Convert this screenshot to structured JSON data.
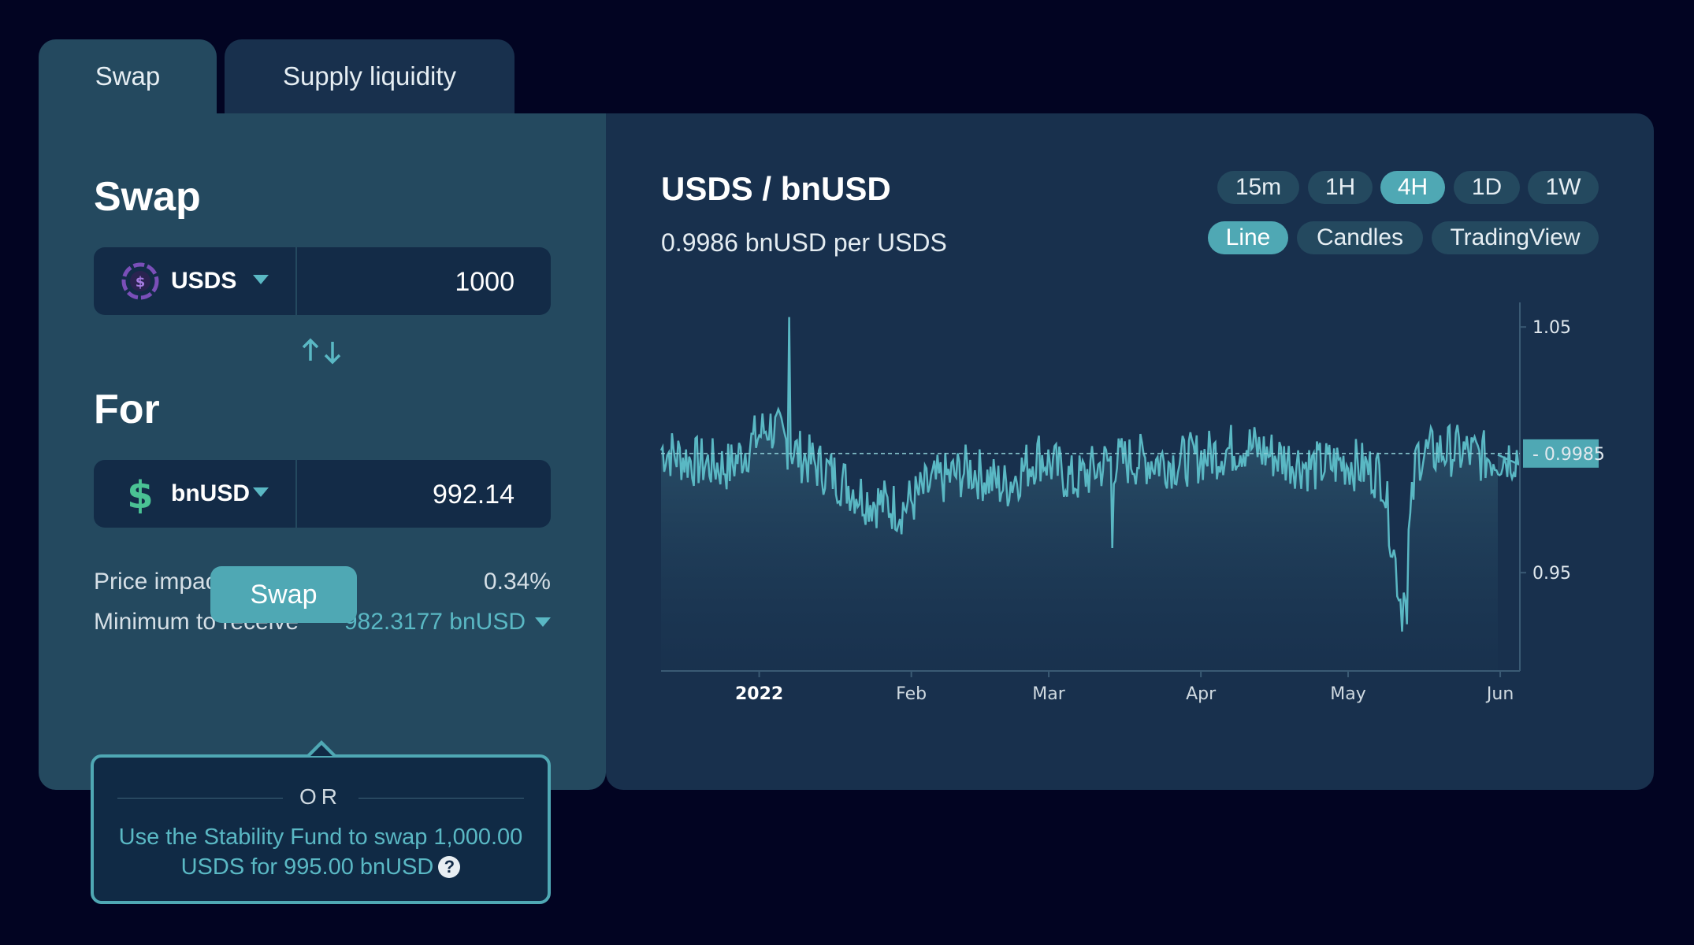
{
  "tabs": [
    {
      "label": "Swap"
    },
    {
      "label": "Supply liquidity"
    }
  ],
  "swap": {
    "title": "Swap",
    "from": {
      "token": "USDS",
      "amount": "1000",
      "icon": "usds-coin-icon"
    },
    "switch_icon": "swap-arrows-icon",
    "for_title": "For",
    "to": {
      "token": "bnUSD",
      "amount": "992.14",
      "icon": "dollar-sign-icon"
    },
    "price_impact_label": "Price impact",
    "price_impact_value": "0.34%",
    "min_receive_label": "Minimum to receive",
    "min_receive_value": "982.3177 bnUSD",
    "button_label": "Swap",
    "alt": {
      "or": "OR",
      "text": "Use the Stability Fund to swap 1,000.00 USDS for 995.00 bnUSD",
      "help": "?"
    }
  },
  "chart_panel": {
    "pair": "USDS / bnUSD",
    "rate": "0.9986 bnUSD per USDS",
    "intervals": [
      "15m",
      "1H",
      "4H",
      "1D",
      "1W"
    ],
    "active_interval": "4H",
    "chart_types": [
      "Line",
      "Candles",
      "TradingView"
    ],
    "active_chart_type": "Line"
  },
  "colors": {
    "background": "#020422",
    "panel": "#18304d",
    "swap_panel": "#24495f",
    "accent": "#4fa8b4",
    "line": "#5ab8c4"
  },
  "chart_data": {
    "type": "area",
    "x_tick_labels": [
      "2022",
      "Feb",
      "Mar",
      "Apr",
      "May",
      "Jun"
    ],
    "y_tick_labels": [
      "1.05",
      "0.95"
    ],
    "ylim": [
      0.91,
      1.06
    ],
    "current_value_label": "0.9985",
    "current_value": 0.9985,
    "series": [
      {
        "x": [
          "2021-12-12",
          "2021-12-19",
          "2021-12-26",
          "2022-01-01",
          "2022-01-03",
          "2022-01-09",
          "2022-01-16",
          "2022-01-23",
          "2022-01-30",
          "2022-02-06",
          "2022-02-13",
          "2022-02-20",
          "2022-02-27",
          "2022-03-06",
          "2022-03-13",
          "2022-03-20",
          "2022-03-27",
          "2022-04-03",
          "2022-04-10",
          "2022-04-17",
          "2022-04-24",
          "2022-05-01",
          "2022-05-08",
          "2022-05-12",
          "2022-05-15",
          "2022-05-22",
          "2022-05-29",
          "2022-06-05"
        ],
        "y": [
          1.0,
          0.995,
          0.993,
          1.006,
          1.01,
          0.998,
          0.99,
          0.98,
          0.976,
          0.987,
          0.992,
          0.985,
          0.998,
          0.987,
          0.995,
          0.996,
          0.995,
          0.998,
          1.002,
          0.997,
          0.993,
          0.995,
          0.99,
          0.935,
          0.998,
          1.0,
          0.997,
          0.998
        ],
        "max": 1.054,
        "min": 0.929
      }
    ]
  }
}
